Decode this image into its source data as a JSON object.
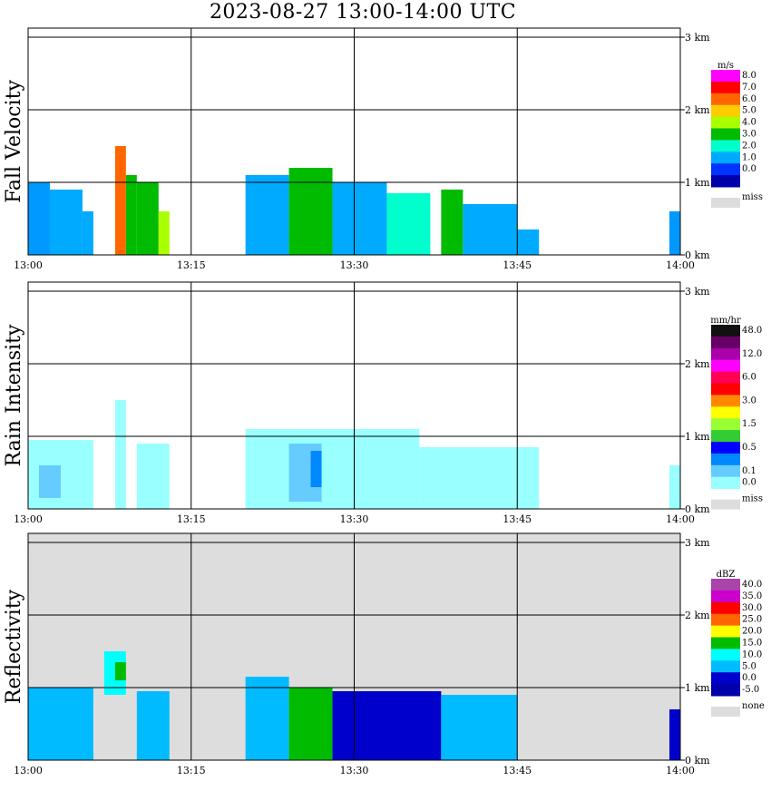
{
  "title": "2023-08-27  13:00-14:00 UTC",
  "x_ticks": [
    "13:00",
    "13:15",
    "13:30",
    "13:45",
    "14:00"
  ],
  "y_ticks": [
    "0 km",
    "1 km",
    "2 km",
    "3 km"
  ],
  "chart_data": [
    {
      "type": "heatmap",
      "ylabel": "Fall Velocity",
      "xlim": [
        "13:00",
        "14:00"
      ],
      "ylim": [
        0,
        3.0
      ],
      "background": "#ffffff",
      "colorbar": {
        "unit": "m/s",
        "levels": [
          "8.0",
          "7.0",
          "6.0",
          "5.0",
          "4.0",
          "3.0",
          "2.0",
          "1.0",
          "0.0"
        ],
        "colors": [
          "#ff00ff",
          "#ff0000",
          "#ff6600",
          "#ffcc00",
          "#aaff00",
          "#00bb00",
          "#00ffcc",
          "#00aaff",
          "#0033ff"
        ],
        "extra_colors": [
          "#0000aa"
        ],
        "miss_label": "miss",
        "miss_color": "#dddddd"
      },
      "echo_regions": [
        {
          "start": "13:00",
          "end": "13:02",
          "top_km": 1.0,
          "base_km": 0.0,
          "color": "#0099ff"
        },
        {
          "start": "13:02",
          "end": "13:05",
          "top_km": 0.9,
          "base_km": 0.0,
          "color": "#00aaff"
        },
        {
          "start": "13:05",
          "end": "13:06",
          "top_km": 0.6,
          "base_km": 0.0,
          "color": "#00aaff"
        },
        {
          "start": "13:08",
          "end": "13:09",
          "top_km": 1.5,
          "base_km": 0.0,
          "color": "#ff6600"
        },
        {
          "start": "13:09",
          "end": "13:10",
          "top_km": 1.1,
          "base_km": 0.0,
          "color": "#00bb00"
        },
        {
          "start": "13:10",
          "end": "13:12",
          "top_km": 1.0,
          "base_km": 0.0,
          "color": "#00bb00"
        },
        {
          "start": "13:12",
          "end": "13:13",
          "top_km": 0.6,
          "base_km": 0.0,
          "color": "#aaff00"
        },
        {
          "start": "13:20",
          "end": "13:24",
          "top_km": 1.1,
          "base_km": 0.0,
          "color": "#00aaff"
        },
        {
          "start": "13:24",
          "end": "13:28",
          "top_km": 1.2,
          "base_km": 0.0,
          "color": "#00bb00"
        },
        {
          "start": "13:28",
          "end": "13:33",
          "top_km": 1.0,
          "base_km": 0.0,
          "color": "#00aaff"
        },
        {
          "start": "13:33",
          "end": "13:37",
          "top_km": 0.85,
          "base_km": 0.0,
          "color": "#00ffcc"
        },
        {
          "start": "13:38",
          "end": "13:40",
          "top_km": 0.9,
          "base_km": 0.0,
          "color": "#00bb00"
        },
        {
          "start": "13:40",
          "end": "13:45",
          "top_km": 0.7,
          "base_km": 0.0,
          "color": "#00aaff"
        },
        {
          "start": "13:45",
          "end": "13:47",
          "top_km": 0.35,
          "base_km": 0.0,
          "color": "#00aaff"
        },
        {
          "start": "13:59",
          "end": "14:00",
          "top_km": 0.6,
          "base_km": 0.0,
          "color": "#0099ff"
        }
      ]
    },
    {
      "type": "heatmap",
      "ylabel": "Rain Intensity",
      "xlim": [
        "13:00",
        "14:00"
      ],
      "ylim": [
        0,
        3.0
      ],
      "background": "#ffffff",
      "colorbar": {
        "unit": "mm/hr",
        "levels": [
          "48.0",
          "12.0",
          "6.0",
          "3.0",
          "1.5",
          "0.5",
          "0.1",
          "0.0"
        ],
        "level_rows": [
          0,
          2,
          4,
          6,
          8,
          10,
          12,
          13
        ],
        "colors": [
          "#111111",
          "#660066",
          "#aa00aa",
          "#ff00ff",
          "#ff0055",
          "#ff0000",
          "#ff8800",
          "#ffff00",
          "#99ff33",
          "#33cc33",
          "#0000ff",
          "#0088ff",
          "#66ccff",
          "#99ffff"
        ],
        "miss_label": "miss",
        "miss_color": "#dddddd"
      },
      "echo_regions": [
        {
          "start": "13:00",
          "end": "13:06",
          "top_km": 0.95,
          "base_km": 0.0,
          "color": "#99ffff"
        },
        {
          "start": "13:01",
          "end": "13:03",
          "top_km": 0.6,
          "base_km": 0.15,
          "color": "#66ccff"
        },
        {
          "start": "13:08",
          "end": "13:09",
          "top_km": 1.5,
          "base_km": 0.0,
          "color": "#99ffff"
        },
        {
          "start": "13:10",
          "end": "13:13",
          "top_km": 0.9,
          "base_km": 0.0,
          "color": "#99ffff"
        },
        {
          "start": "13:20",
          "end": "13:36",
          "top_km": 1.1,
          "base_km": 0.0,
          "color": "#99ffff"
        },
        {
          "start": "13:24",
          "end": "13:27",
          "top_km": 0.9,
          "base_km": 0.1,
          "color": "#66ccff"
        },
        {
          "start": "13:26",
          "end": "13:27",
          "top_km": 0.8,
          "base_km": 0.3,
          "color": "#0088ff"
        },
        {
          "start": "13:36",
          "end": "13:47",
          "top_km": 0.85,
          "base_km": 0.0,
          "color": "#99ffff"
        },
        {
          "start": "13:59",
          "end": "14:00",
          "top_km": 0.6,
          "base_km": 0.0,
          "color": "#99ffff"
        }
      ]
    },
    {
      "type": "heatmap",
      "ylabel": "Reflectivity",
      "xlim": [
        "13:00",
        "14:00"
      ],
      "ylim": [
        0,
        3.0
      ],
      "background": "#dddddd",
      "colorbar": {
        "unit": "dBZ",
        "levels": [
          "40.0",
          "35.0",
          "30.0",
          "25.0",
          "20.0",
          "15.0",
          "10.0",
          "5.0",
          "0.0",
          "-5.0"
        ],
        "colors": [
          "#aa44aa",
          "#cc00cc",
          "#ff0000",
          "#ff6600",
          "#ffff00",
          "#00bb00",
          "#00ffff",
          "#00bbff",
          "#0000cc",
          "#0000aa"
        ],
        "miss_label": "none",
        "miss_color": "#dddddd"
      },
      "echo_regions": [
        {
          "start": "13:00",
          "end": "13:06",
          "top_km": 1.0,
          "base_km": 0.0,
          "color": "#00bbff"
        },
        {
          "start": "13:07",
          "end": "13:09",
          "top_km": 1.5,
          "base_km": 0.9,
          "color": "#00ffff"
        },
        {
          "start": "13:08",
          "end": "13:09",
          "top_km": 1.35,
          "base_km": 1.1,
          "color": "#00bb00"
        },
        {
          "start": "13:10",
          "end": "13:13",
          "top_km": 0.95,
          "base_km": 0.0,
          "color": "#00bbff"
        },
        {
          "start": "13:20",
          "end": "13:24",
          "top_km": 1.15,
          "base_km": 0.0,
          "color": "#00bbff"
        },
        {
          "start": "13:24",
          "end": "13:28",
          "top_km": 1.0,
          "base_km": 0.0,
          "color": "#00bb00"
        },
        {
          "start": "13:28",
          "end": "13:38",
          "top_km": 0.95,
          "base_km": 0.0,
          "color": "#0000cc"
        },
        {
          "start": "13:38",
          "end": "13:45",
          "top_km": 0.9,
          "base_km": 0.0,
          "color": "#00bbff"
        },
        {
          "start": "13:59",
          "end": "14:00",
          "top_km": 0.7,
          "base_km": 0.0,
          "color": "#0000cc"
        }
      ]
    }
  ]
}
